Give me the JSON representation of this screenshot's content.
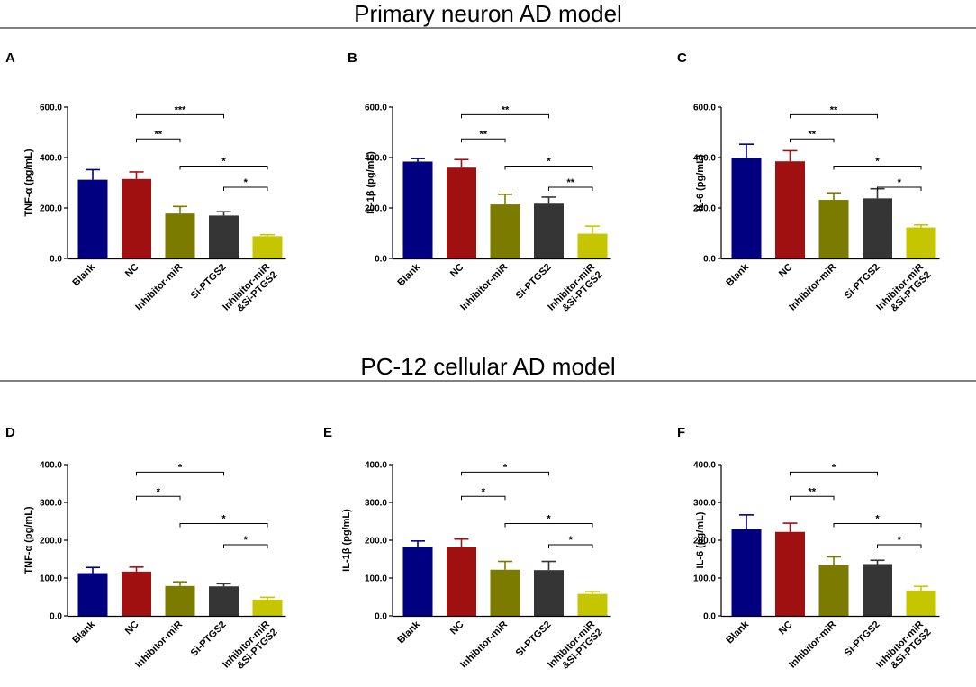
{
  "sections": [
    {
      "title": "Primary neuron AD model"
    },
    {
      "title": "PC-12 cellular AD model"
    }
  ],
  "colors": [
    "#000080",
    "#a01010",
    "#7b7b00",
    "#353535",
    "#c6c600"
  ],
  "chart_data": [
    {
      "panel": "A",
      "type": "bar",
      "ylabel": "TNF-α (pg/mL)",
      "ylim": [
        0,
        600
      ],
      "yticks": [
        "0.0",
        "200.0",
        "400.0",
        "600.0"
      ],
      "categories": [
        "Blank",
        "NC",
        "Inhibitor-miR",
        "Si-PTGS2",
        "Inhibitor-miR\n&Si-PTGS2"
      ],
      "values": [
        312,
        315,
        178,
        170,
        88
      ],
      "errors": [
        40,
        28,
        28,
        15,
        6
      ],
      "comparisons": [
        {
          "from": 1,
          "to": 3,
          "label": "***"
        },
        {
          "from": 1,
          "to": 2,
          "label": "**"
        },
        {
          "from": 2,
          "to": 4,
          "label": "*"
        },
        {
          "from": 3,
          "to": 4,
          "label": "*"
        }
      ]
    },
    {
      "panel": "B",
      "type": "bar",
      "ylabel": "IL-1β (pg/mL)",
      "ylim": [
        0,
        600
      ],
      "yticks": [
        "0.0",
        "200.0",
        "400.0",
        "600.0"
      ],
      "categories": [
        "Blank",
        "NC",
        "Inhibitor-miR",
        "Si-PTGS2",
        "Inhibitor-miR\n&Si-PTGS2"
      ],
      "values": [
        384,
        360,
        214,
        217,
        98
      ],
      "errors": [
        12,
        32,
        40,
        26,
        30
      ],
      "comparisons": [
        {
          "from": 1,
          "to": 3,
          "label": "**"
        },
        {
          "from": 1,
          "to": 2,
          "label": "**"
        },
        {
          "from": 2,
          "to": 4,
          "label": "*"
        },
        {
          "from": 3,
          "to": 4,
          "label": "**"
        }
      ]
    },
    {
      "panel": "C",
      "type": "bar",
      "ylabel": "IL-6 (pg/mL)",
      "ylim": [
        0,
        600
      ],
      "yticks": [
        "0.0",
        "200.0",
        "400.0",
        "600.0"
      ],
      "categories": [
        "Blank",
        "NC",
        "Inhibitor-miR",
        "Si-PTGS2",
        "Inhibitor-miR\n&Si-PTGS2"
      ],
      "values": [
        398,
        385,
        232,
        238,
        123
      ],
      "errors": [
        55,
        42,
        28,
        38,
        10
      ],
      "comparisons": [
        {
          "from": 1,
          "to": 3,
          "label": "**"
        },
        {
          "from": 1,
          "to": 2,
          "label": "**"
        },
        {
          "from": 2,
          "to": 4,
          "label": "*"
        },
        {
          "from": 3,
          "to": 4,
          "label": "*"
        }
      ]
    },
    {
      "panel": "D",
      "type": "bar",
      "ylabel": "TNF-α (pg/mL)",
      "ylim": [
        0,
        400
      ],
      "yticks": [
        "0.0",
        "100.0",
        "200.0",
        "300.0",
        "400.0"
      ],
      "categories": [
        "Blank",
        "NC",
        "Inhibitor-miR",
        "Si-PTGS2",
        "Inhibitor-miR\n&Si-PTGS2"
      ],
      "values": [
        113,
        117,
        79,
        78,
        43
      ],
      "errors": [
        15,
        12,
        11,
        7,
        6
      ],
      "comparisons": [
        {
          "from": 1,
          "to": 3,
          "label": "*"
        },
        {
          "from": 1,
          "to": 2,
          "label": "*"
        },
        {
          "from": 2,
          "to": 4,
          "label": "*"
        },
        {
          "from": 3,
          "to": 4,
          "label": "*"
        }
      ]
    },
    {
      "panel": "E",
      "type": "bar",
      "ylabel": "IL-1β (pg/mL)",
      "ylim": [
        0,
        400
      ],
      "yticks": [
        "0.0",
        "100.0",
        "200.0",
        "300.0",
        "400.0"
      ],
      "categories": [
        "Blank",
        "NC",
        "Inhibitor-miR",
        "Si-PTGS2",
        "Inhibitor-miR\n&Si-PTGS2"
      ],
      "values": [
        182,
        181,
        122,
        121,
        58
      ],
      "errors": [
        16,
        22,
        22,
        23,
        6
      ],
      "comparisons": [
        {
          "from": 1,
          "to": 3,
          "label": "*"
        },
        {
          "from": 1,
          "to": 2,
          "label": "*"
        },
        {
          "from": 2,
          "to": 4,
          "label": "*"
        },
        {
          "from": 3,
          "to": 4,
          "label": "*"
        }
      ]
    },
    {
      "panel": "F",
      "type": "bar",
      "ylabel": "IL-6 (pg/mL)",
      "ylim": [
        0,
        400
      ],
      "yticks": [
        "0.0",
        "100.0",
        "200.0",
        "300.0",
        "400.0"
      ],
      "categories": [
        "Blank",
        "NC",
        "Inhibitor-miR",
        "Si-PTGS2",
        "Inhibitor-miR\n&Si-PTGS2"
      ],
      "values": [
        229,
        222,
        134,
        137,
        67
      ],
      "errors": [
        38,
        23,
        22,
        10,
        11
      ],
      "comparisons": [
        {
          "from": 1,
          "to": 3,
          "label": "*"
        },
        {
          "from": 1,
          "to": 2,
          "label": "**"
        },
        {
          "from": 2,
          "to": 4,
          "label": "*"
        },
        {
          "from": 3,
          "to": 4,
          "label": "*"
        }
      ]
    }
  ]
}
